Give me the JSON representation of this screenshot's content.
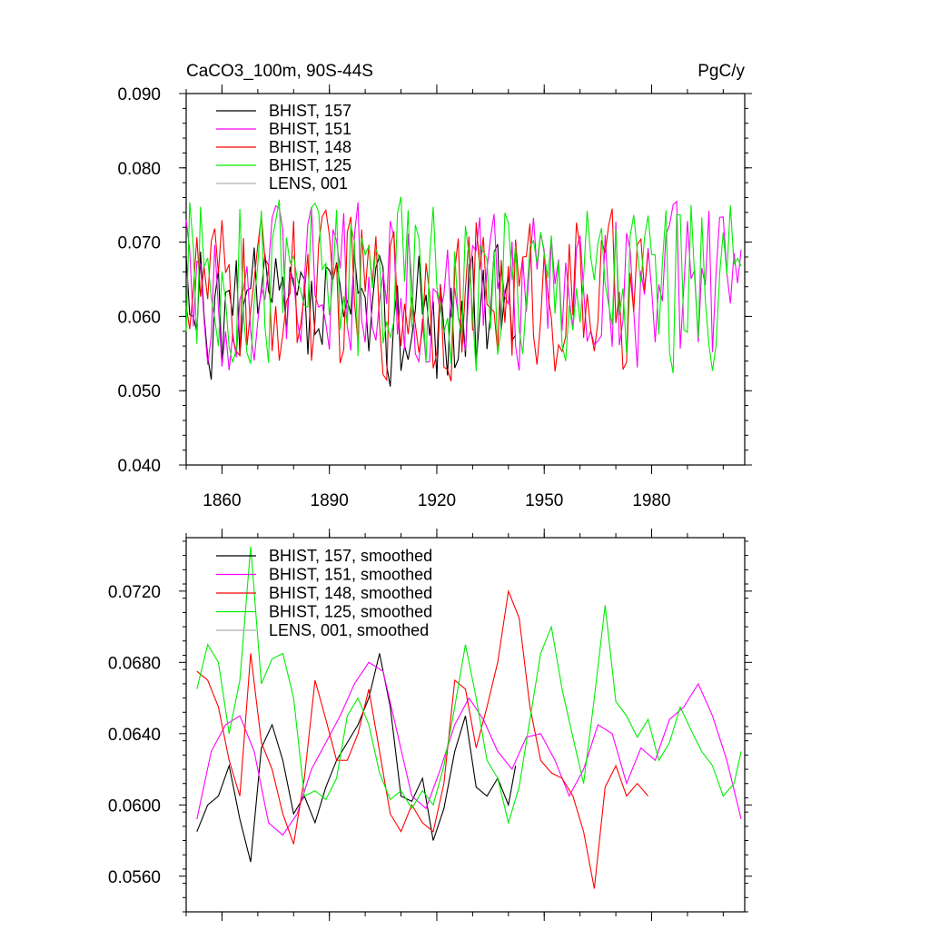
{
  "chart_data": [
    {
      "type": "line",
      "title_left": "CaCO3_100m, 90S-44S",
      "title_right": "PgC/y",
      "xlim": [
        1850,
        2006
      ],
      "ylim": [
        0.04,
        0.09
      ],
      "y_ticks": [
        0.04,
        0.05,
        0.06,
        0.07,
        0.08,
        0.09
      ],
      "y_tick_labels": [
        "0.040",
        "0.050",
        "0.060",
        "0.070",
        "0.080",
        "0.090"
      ],
      "x_ticks": [
        1860,
        1890,
        1920,
        1950,
        1980
      ],
      "x_tick_labels": [
        "1860",
        "1890",
        "1920",
        "1950",
        "1980"
      ],
      "legend": [
        {
          "label": "BHIST, 157",
          "color": "#000000"
        },
        {
          "label": "BHIST, 151",
          "color": "#ff00ff"
        },
        {
          "label": "BHIST, 148",
          "color": "#ff0000"
        },
        {
          "label": "BHIST, 125",
          "color": "#00ee00"
        },
        {
          "label": "LENS, 001",
          "color": "#b0b0b0"
        }
      ],
      "series": [
        {
          "name": "BHIST, 157",
          "color": "#000000",
          "x_start": 1850,
          "x_end": 1942,
          "mean": 0.06,
          "amp": 0.007,
          "seed": 157
        },
        {
          "name": "BHIST, 151",
          "color": "#ff00ff",
          "x_start": 1850,
          "x_end": 2005,
          "mean": 0.064,
          "amp": 0.008,
          "seed": 151
        },
        {
          "name": "BHIST, 148",
          "color": "#ff0000",
          "x_start": 1850,
          "x_end": 1979,
          "mean": 0.063,
          "amp": 0.008,
          "seed": 148
        },
        {
          "name": "BHIST, 125",
          "color": "#00ee00",
          "x_start": 1850,
          "x_end": 2005,
          "mean": 0.065,
          "amp": 0.009,
          "seed": 125
        }
      ]
    },
    {
      "type": "line",
      "xlim": [
        1850,
        2006
      ],
      "ylim": [
        0.054,
        0.075
      ],
      "y_ticks": [
        0.056,
        0.06,
        0.064,
        0.068,
        0.072
      ],
      "y_tick_labels": [
        "0.0560",
        "0.0600",
        "0.0640",
        "0.0680",
        "0.0720"
      ],
      "x_ticks": [
        1860,
        1890,
        1920,
        1950,
        1980
      ],
      "legend": [
        {
          "label": "BHIST, 157, smoothed",
          "color": "#000000"
        },
        {
          "label": "BHIST, 151, smoothed",
          "color": "#ff00ff"
        },
        {
          "label": "BHIST, 148, smoothed",
          "color": "#ff0000"
        },
        {
          "label": "BHIST, 125, smoothed",
          "color": "#00ee00"
        },
        {
          "label": "LENS, 001, smoothed",
          "color": "#b0b0b0"
        }
      ],
      "series": [
        {
          "name": "BHIST, 157, smoothed",
          "color": "#000000",
          "x": [
            1853,
            1856,
            1859,
            1862,
            1865,
            1868,
            1871,
            1874,
            1877,
            1880,
            1883,
            1886,
            1889,
            1892,
            1895,
            1898,
            1901,
            1904,
            1907,
            1910,
            1913,
            1916,
            1919,
            1922,
            1925,
            1928,
            1931,
            1934,
            1937,
            1940,
            1942
          ],
          "y": [
            0.0585,
            0.06,
            0.0605,
            0.0622,
            0.0592,
            0.0568,
            0.0632,
            0.0645,
            0.0625,
            0.0595,
            0.0605,
            0.059,
            0.061,
            0.0625,
            0.0635,
            0.0645,
            0.066,
            0.0685,
            0.0655,
            0.0605,
            0.0602,
            0.0615,
            0.058,
            0.0598,
            0.063,
            0.065,
            0.061,
            0.0605,
            0.0615,
            0.06,
            0.0622
          ]
        },
        {
          "name": "BHIST, 151, smoothed",
          "color": "#ff00ff",
          "x": [
            1853,
            1857,
            1861,
            1865,
            1869,
            1873,
            1877,
            1881,
            1885,
            1889,
            1893,
            1897,
            1901,
            1905,
            1909,
            1913,
            1917,
            1921,
            1925,
            1929,
            1933,
            1937,
            1941,
            1945,
            1949,
            1953,
            1957,
            1961,
            1965,
            1969,
            1973,
            1977,
            1981,
            1985,
            1989,
            1993,
            1997,
            2001,
            2005
          ],
          "y": [
            0.0592,
            0.063,
            0.0645,
            0.065,
            0.063,
            0.059,
            0.0583,
            0.0595,
            0.062,
            0.0635,
            0.065,
            0.0668,
            0.068,
            0.0675,
            0.064,
            0.0605,
            0.0598,
            0.062,
            0.0645,
            0.066,
            0.0648,
            0.063,
            0.062,
            0.0638,
            0.064,
            0.0625,
            0.0605,
            0.062,
            0.0645,
            0.064,
            0.0612,
            0.0632,
            0.0625,
            0.0648,
            0.0655,
            0.0668,
            0.065,
            0.0625,
            0.0592
          ]
        },
        {
          "name": "BHIST, 148, smoothed",
          "color": "#ff0000",
          "x": [
            1853,
            1856,
            1859,
            1862,
            1865,
            1868,
            1871,
            1874,
            1877,
            1880,
            1883,
            1886,
            1889,
            1892,
            1895,
            1898,
            1901,
            1904,
            1907,
            1910,
            1913,
            1916,
            1919,
            1922,
            1925,
            1928,
            1931,
            1934,
            1937,
            1940,
            1943,
            1946,
            1949,
            1952,
            1955,
            1958,
            1961,
            1964,
            1967,
            1970,
            1973,
            1976,
            1979
          ],
          "y": [
            0.0675,
            0.067,
            0.0655,
            0.0625,
            0.0605,
            0.0685,
            0.0635,
            0.062,
            0.0595,
            0.0578,
            0.0615,
            0.067,
            0.0648,
            0.0625,
            0.0625,
            0.064,
            0.0665,
            0.063,
            0.0595,
            0.0585,
            0.06,
            0.059,
            0.0585,
            0.0612,
            0.067,
            0.0665,
            0.0632,
            0.0655,
            0.068,
            0.072,
            0.0705,
            0.0655,
            0.0625,
            0.0618,
            0.0615,
            0.0605,
            0.0585,
            0.0553,
            0.061,
            0.0622,
            0.0605,
            0.0612,
            0.0605
          ]
        },
        {
          "name": "BHIST, 125, smoothed",
          "color": "#00ee00",
          "x": [
            1853,
            1856,
            1859,
            1862,
            1865,
            1868,
            1871,
            1874,
            1877,
            1880,
            1883,
            1886,
            1889,
            1892,
            1895,
            1898,
            1901,
            1904,
            1907,
            1910,
            1913,
            1916,
            1919,
            1922,
            1925,
            1928,
            1931,
            1934,
            1937,
            1940,
            1943,
            1946,
            1949,
            1952,
            1955,
            1958,
            1961,
            1964,
            1967,
            1970,
            1973,
            1976,
            1979,
            1982,
            1985,
            1988,
            1991,
            1994,
            1997,
            2000,
            2003,
            2005
          ],
          "y": [
            0.0665,
            0.069,
            0.068,
            0.064,
            0.067,
            0.0745,
            0.0668,
            0.0682,
            0.0685,
            0.066,
            0.0605,
            0.0608,
            0.0603,
            0.0615,
            0.065,
            0.066,
            0.0645,
            0.0618,
            0.0603,
            0.0608,
            0.0598,
            0.0608,
            0.06,
            0.0622,
            0.0655,
            0.069,
            0.066,
            0.0625,
            0.0615,
            0.059,
            0.061,
            0.0648,
            0.0685,
            0.07,
            0.0665,
            0.0638,
            0.0612,
            0.066,
            0.0712,
            0.0658,
            0.065,
            0.0638,
            0.0648,
            0.0625,
            0.0635,
            0.0655,
            0.0642,
            0.063,
            0.0622,
            0.0605,
            0.0612,
            0.063
          ]
        }
      ]
    }
  ]
}
